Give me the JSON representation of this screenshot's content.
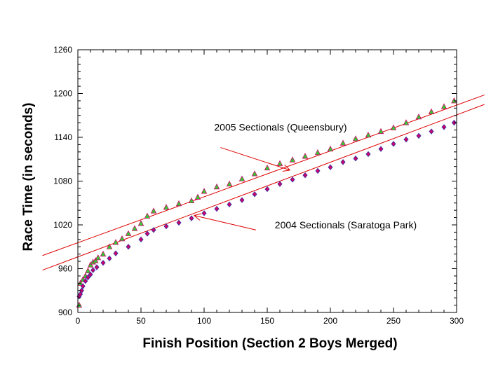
{
  "chart_data": {
    "type": "scatter",
    "title": "",
    "xlabel": "Finish Position (Section 2 Boys Merged)",
    "ylabel": "Race Time (in seconds)",
    "xlim": [
      0,
      300
    ],
    "ylim": [
      900,
      1260
    ],
    "x_ticks": [
      0,
      50,
      100,
      150,
      200,
      250,
      300
    ],
    "y_ticks": [
      900,
      960,
      1020,
      1080,
      1140,
      1200,
      1260
    ],
    "grid": false,
    "legend": "none",
    "series": [
      {
        "marker": "triangle",
        "fill_color": "#33cc33",
        "edge_color": "#cc0066",
        "points": [
          [
            1,
            910
          ],
          [
            2,
            940
          ],
          [
            4,
            945
          ],
          [
            6,
            950
          ],
          [
            8,
            957
          ],
          [
            10,
            965
          ],
          [
            12,
            969
          ],
          [
            14,
            971
          ],
          [
            16,
            975
          ],
          [
            20,
            980
          ],
          [
            25,
            990
          ],
          [
            30,
            996
          ],
          [
            35,
            1001
          ],
          [
            40,
            1008
          ],
          [
            45,
            1015
          ],
          [
            50,
            1022
          ],
          [
            55,
            1032
          ],
          [
            60,
            1039
          ],
          [
            70,
            1044
          ],
          [
            80,
            1049
          ],
          [
            90,
            1053
          ],
          [
            95,
            1058
          ],
          [
            100,
            1066
          ],
          [
            110,
            1072
          ],
          [
            120,
            1076
          ],
          [
            130,
            1083
          ],
          [
            140,
            1090
          ],
          [
            150,
            1098
          ],
          [
            160,
            1104
          ],
          [
            170,
            1109
          ],
          [
            180,
            1114
          ],
          [
            190,
            1119
          ],
          [
            200,
            1124
          ],
          [
            210,
            1132
          ],
          [
            220,
            1138
          ],
          [
            230,
            1143
          ],
          [
            240,
            1148
          ],
          [
            250,
            1153
          ],
          [
            260,
            1160
          ],
          [
            270,
            1168
          ],
          [
            280,
            1175
          ],
          [
            290,
            1182
          ],
          [
            298,
            1190
          ]
        ]
      },
      {
        "marker": "diamond",
        "fill_color": "#cc0066",
        "edge_color": "#3333aa",
        "points": [
          [
            1,
            922
          ],
          [
            2,
            925
          ],
          [
            3,
            930
          ],
          [
            4,
            936
          ],
          [
            6,
            943
          ],
          [
            8,
            948
          ],
          [
            10,
            952
          ],
          [
            12,
            958
          ],
          [
            15,
            962
          ],
          [
            20,
            968
          ],
          [
            25,
            974
          ],
          [
            30,
            981
          ],
          [
            40,
            990
          ],
          [
            50,
            1000
          ],
          [
            55,
            1008
          ],
          [
            60,
            1013
          ],
          [
            70,
            1018
          ],
          [
            80,
            1023
          ],
          [
            90,
            1029
          ],
          [
            100,
            1036
          ],
          [
            110,
            1042
          ],
          [
            120,
            1048
          ],
          [
            130,
            1054
          ],
          [
            140,
            1062
          ],
          [
            150,
            1069
          ],
          [
            160,
            1076
          ],
          [
            170,
            1082
          ],
          [
            180,
            1088
          ],
          [
            190,
            1094
          ],
          [
            200,
            1099
          ],
          [
            210,
            1106
          ],
          [
            220,
            1111
          ],
          [
            230,
            1117
          ],
          [
            240,
            1124
          ],
          [
            250,
            1131
          ],
          [
            260,
            1137
          ],
          [
            270,
            1142
          ],
          [
            280,
            1148
          ],
          [
            290,
            1154
          ],
          [
            298,
            1160
          ]
        ]
      }
    ],
    "fit_lines": [
      {
        "x": [
          -28,
          322
        ],
        "y": [
          978,
          1198
        ]
      },
      {
        "x": [
          -28,
          322
        ],
        "y": [
          958,
          1185
        ]
      }
    ],
    "annotations": [
      {
        "text": "2005 Sectionals (Queensbury)",
        "x": 108,
        "y": 1149,
        "arrow_from": [
          113,
          1126
        ],
        "arrow_to": [
          168,
          1095
        ]
      },
      {
        "text": "2004 Sectionals (Saratoga Park)",
        "x": 156,
        "y": 1015,
        "arrow_from": [
          141,
          1013
        ],
        "arrow_to": [
          92,
          1033
        ]
      }
    ]
  }
}
